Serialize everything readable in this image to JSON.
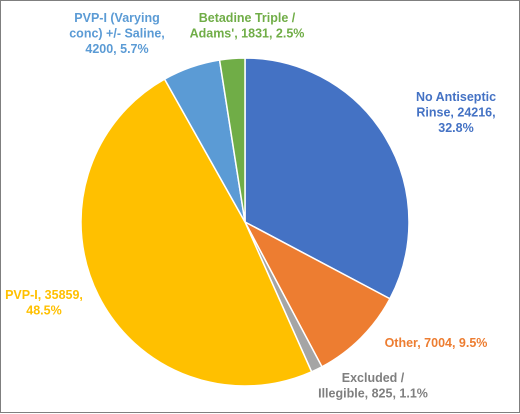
{
  "chart_data": {
    "type": "pie",
    "title": "",
    "start_angle_deg": 0,
    "direction": "clockwise",
    "slices": [
      {
        "category": "No Antiseptic Rinse",
        "value": 24216,
        "percent": "32.8%",
        "color": "#4472C4",
        "label_lines": [
          "No Antiseptic",
          "Rinse, 24216,",
          "32.8%"
        ]
      },
      {
        "category": "Other",
        "value": 7004,
        "percent": "9.5%",
        "color": "#ED7D31",
        "label_lines": [
          "Other, 7004, 9.5%"
        ]
      },
      {
        "category": "Excluded / Illegible",
        "value": 825,
        "percent": "1.1%",
        "color": "#A5A5A5",
        "label_lines": [
          "Excluded /",
          "Illegible, 825, 1.1%"
        ]
      },
      {
        "category": "PVP-I",
        "value": 35859,
        "percent": "48.5%",
        "color": "#FFC000",
        "label_lines": [
          "PVP-I, 35859,",
          "48.5%"
        ]
      },
      {
        "category": "PVP-I (Varying conc) +/- Saline",
        "value": 4200,
        "percent": "5.7%",
        "color": "#5B9BD5",
        "label_lines": [
          "PVP-I (Varying",
          "conc) +/- Saline,",
          "4200, 5.7%"
        ]
      },
      {
        "category": "Betadine Triple / Adams'",
        "value": 1831,
        "percent": "2.5%",
        "color": "#70AD47",
        "label_lines": [
          "Betadine Triple /",
          "Adams', 1831, 2.5%"
        ]
      }
    ],
    "label_color_overrides": {
      "Excluded / Illegible": "#7F7F7F"
    },
    "legend": "none",
    "data_labels": "outside"
  }
}
